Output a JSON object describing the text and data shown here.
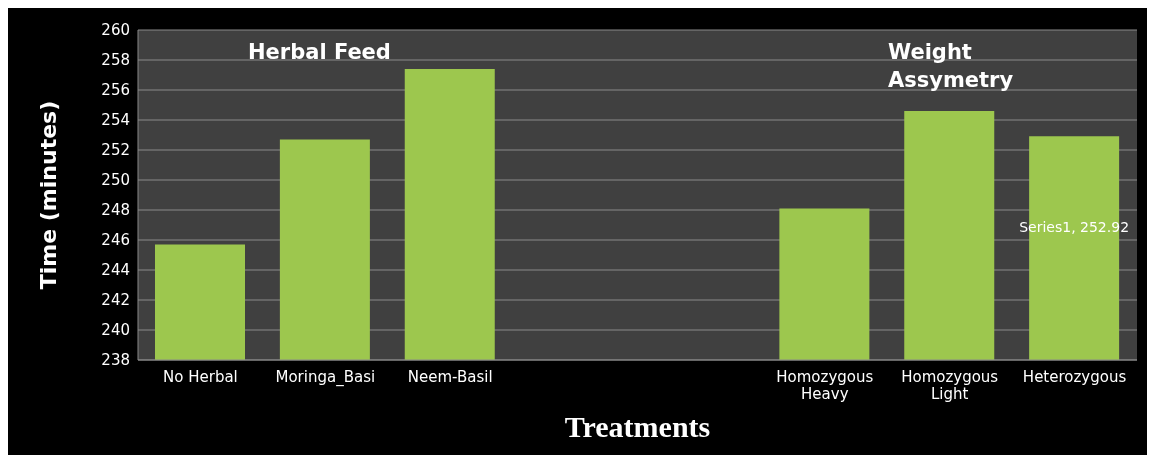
{
  "chart_data": {
    "type": "bar",
    "categories": [
      "No Herbal",
      "Moringa_Basi",
      "Neem-Basil",
      null,
      null,
      "Homozygous Heavy",
      "Homozygous Light",
      "Heterozygous"
    ],
    "values": [
      245.7,
      252.7,
      257.4,
      null,
      null,
      248.1,
      254.6,
      252.92
    ],
    "value_labels": [
      null,
      null,
      null,
      null,
      null,
      null,
      null,
      "Series1, 252.92"
    ],
    "color": "#9dc74e",
    "xlabel": "Treatments",
    "ylabel": "Time (minutes)",
    "ylim": [
      238,
      260
    ],
    "yticks": [
      238,
      240,
      242,
      244,
      246,
      248,
      250,
      252,
      254,
      256,
      258,
      260
    ],
    "grid": "y",
    "legend": false,
    "annotations": [
      "Herbal Feed",
      "Weight Assymetry"
    ]
  }
}
